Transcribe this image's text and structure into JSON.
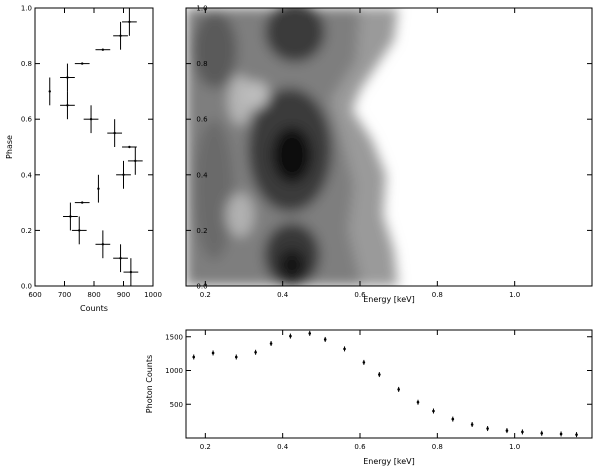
{
  "chart_data": [
    {
      "type": "scatter",
      "panel": "phase-counts",
      "xlabel": "Counts",
      "ylabel": "Phase",
      "xlim": [
        600,
        1000
      ],
      "ylim": [
        0,
        1
      ],
      "xticks": [
        600,
        700,
        800,
        900,
        1000
      ],
      "xtick_labels": [
        "600",
        "700",
        "800",
        "900",
        "1000"
      ],
      "yticks": [
        0,
        0.2,
        0.4,
        0.6,
        0.8,
        1.0
      ],
      "ytick_labels": [
        "0.0",
        "0.2",
        "0.4",
        "0.6",
        "0.8",
        "1.0"
      ],
      "points": [
        {
          "x": 920,
          "y": 0.95,
          "xerr": 25,
          "yerr": 0.05
        },
        {
          "x": 890,
          "y": 0.9,
          "xerr": 25,
          "yerr": 0.05
        },
        {
          "x": 830,
          "y": 0.85,
          "xerr": 25,
          "yerr": 0
        },
        {
          "x": 760,
          "y": 0.8,
          "xerr": 25,
          "yerr": 0
        },
        {
          "x": 710,
          "y": 0.75,
          "xerr": 25,
          "yerr": 0.05
        },
        {
          "x": 650,
          "y": 0.7,
          "xerr": 0,
          "yerr": 0.05
        },
        {
          "x": 710,
          "y": 0.65,
          "xerr": 25,
          "yerr": 0.05
        },
        {
          "x": 790,
          "y": 0.6,
          "xerr": 25,
          "yerr": 0.05
        },
        {
          "x": 870,
          "y": 0.55,
          "xerr": 25,
          "yerr": 0.05
        },
        {
          "x": 920,
          "y": 0.5,
          "xerr": 25,
          "yerr": 0
        },
        {
          "x": 940,
          "y": 0.45,
          "xerr": 25,
          "yerr": 0.05
        },
        {
          "x": 900,
          "y": 0.4,
          "xerr": 25,
          "yerr": 0.05
        },
        {
          "x": 815,
          "y": 0.35,
          "xerr": 0,
          "yerr": 0.05
        },
        {
          "x": 760,
          "y": 0.3,
          "xerr": 25,
          "yerr": 0
        },
        {
          "x": 720,
          "y": 0.25,
          "xerr": 25,
          "yerr": 0.05
        },
        {
          "x": 750,
          "y": 0.2,
          "xerr": 25,
          "yerr": 0.05
        },
        {
          "x": 830,
          "y": 0.15,
          "xerr": 25,
          "yerr": 0.05
        },
        {
          "x": 890,
          "y": 0.1,
          "xerr": 25,
          "yerr": 0.05
        },
        {
          "x": 925,
          "y": 0.05,
          "xerr": 25,
          "yerr": 0.05
        }
      ]
    },
    {
      "type": "heatmap",
      "panel": "phase-energy",
      "xlabel": "Energy [keV]",
      "ylabel": "",
      "xlim": [
        0.15,
        1.2
      ],
      "ylim": [
        0,
        1
      ],
      "xticks": [
        0.2,
        0.4,
        0.6,
        0.8,
        1.0
      ],
      "xtick_labels": [
        "0.2",
        "0.4",
        "0.6",
        "0.8",
        "1.0"
      ],
      "yticks": [
        0,
        0.2,
        0.4,
        0.6,
        0.8,
        1.0
      ],
      "ytick_labels": [
        "0.0",
        "0.2",
        "0.4",
        "0.6",
        "0.8",
        "1.0"
      ],
      "colormap": "gray-reversed"
    },
    {
      "type": "scatter",
      "panel": "photon-spectrum",
      "xlabel": "Energy [keV]",
      "ylabel": "Photon Counts",
      "xlim": [
        0.15,
        1.2
      ],
      "ylim": [
        0,
        1600
      ],
      "xticks": [
        0.2,
        0.4,
        0.6,
        0.8,
        1.0
      ],
      "xtick_labels": [
        "0.2",
        "0.4",
        "0.6",
        "0.8",
        "1.0"
      ],
      "yticks": [
        500,
        1000,
        1500
      ],
      "ytick_labels": [
        "500",
        "1000",
        "1500"
      ],
      "x": [
        0.17,
        0.22,
        0.28,
        0.33,
        0.37,
        0.42,
        0.47,
        0.51,
        0.56,
        0.61,
        0.65,
        0.7,
        0.75,
        0.79,
        0.84,
        0.89,
        0.93,
        0.98,
        1.02,
        1.07,
        1.12,
        1.16
      ],
      "y": [
        1200,
        1260,
        1200,
        1270,
        1400,
        1510,
        1550,
        1460,
        1320,
        1120,
        940,
        720,
        530,
        400,
        280,
        200,
        140,
        110,
        90,
        70,
        60,
        50
      ]
    }
  ]
}
